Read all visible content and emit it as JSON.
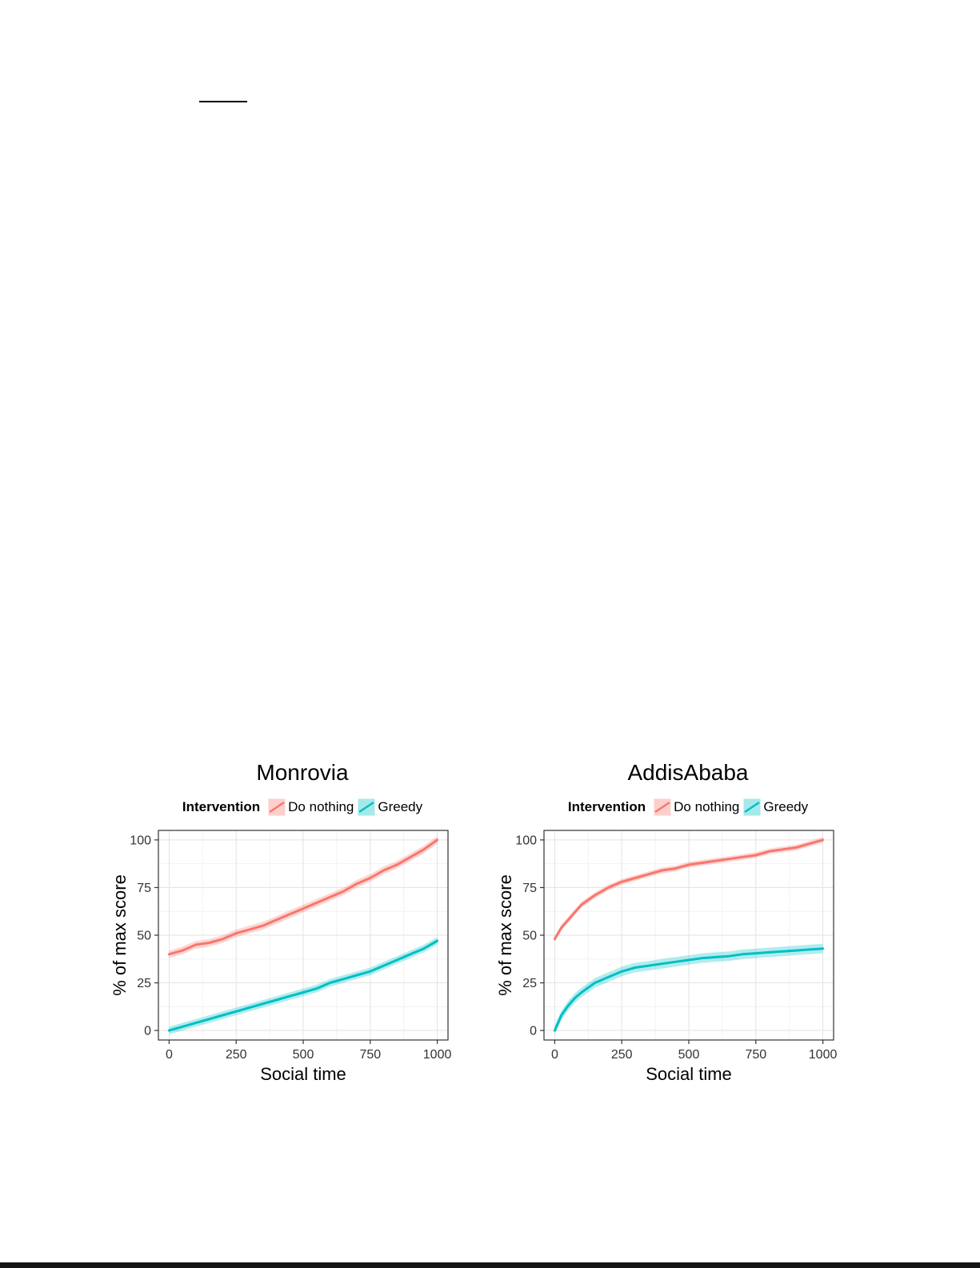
{
  "chart_data": [
    {
      "type": "line",
      "title": "Monrovia",
      "legend_title": "Intervention",
      "legend_position": "top",
      "xlabel": "Social time",
      "ylabel": "% of max score",
      "xlim": [
        0,
        1000
      ],
      "ylim": [
        0,
        100
      ],
      "xticks": [
        0,
        250,
        500,
        750,
        1000
      ],
      "yticks": [
        0,
        25,
        50,
        75,
        100
      ],
      "grid": true,
      "x": [
        0,
        50,
        100,
        150,
        200,
        250,
        300,
        350,
        400,
        450,
        500,
        550,
        600,
        650,
        700,
        750,
        800,
        850,
        900,
        950,
        1000
      ],
      "series": [
        {
          "name": "Do nothing",
          "color": "#F8766D",
          "band": 2,
          "y": [
            40,
            42,
            45,
            46,
            48,
            51,
            53,
            55,
            58,
            61,
            64,
            67,
            70,
            73,
            77,
            80,
            84,
            87,
            91,
            95,
            100
          ]
        },
        {
          "name": "Greedy",
          "color": "#00BFC4",
          "band": 2,
          "y": [
            0,
            2,
            4,
            6,
            8,
            10,
            12,
            14,
            16,
            18,
            20,
            22,
            25,
            27,
            29,
            31,
            34,
            37,
            40,
            43,
            47
          ]
        }
      ]
    },
    {
      "type": "line",
      "title": "AddisAbaba",
      "legend_title": "Intervention",
      "legend_position": "top",
      "xlabel": "Social time",
      "ylabel": "% of max score",
      "xlim": [
        0,
        1000
      ],
      "ylim": [
        0,
        100
      ],
      "xticks": [
        0,
        250,
        500,
        750,
        1000
      ],
      "yticks": [
        0,
        25,
        50,
        75,
        100
      ],
      "grid": true,
      "x": [
        0,
        25,
        50,
        75,
        100,
        150,
        200,
        250,
        300,
        350,
        400,
        450,
        500,
        550,
        600,
        650,
        700,
        750,
        800,
        850,
        900,
        950,
        1000
      ],
      "series": [
        {
          "name": "Do nothing",
          "color": "#F8766D",
          "band": 1.5,
          "y": [
            48,
            54,
            58,
            62,
            66,
            71,
            75,
            78,
            80,
            82,
            84,
            85,
            87,
            88,
            89,
            90,
            91,
            92,
            94,
            95,
            96,
            98,
            100
          ]
        },
        {
          "name": "Greedy",
          "color": "#00BFC4",
          "band": 2.5,
          "y": [
            0,
            8,
            13,
            17,
            20,
            25,
            28,
            31,
            33,
            34,
            35,
            36,
            37,
            38,
            38.5,
            39,
            40,
            40.5,
            41,
            41.5,
            42,
            42.5,
            43
          ]
        }
      ]
    }
  ]
}
